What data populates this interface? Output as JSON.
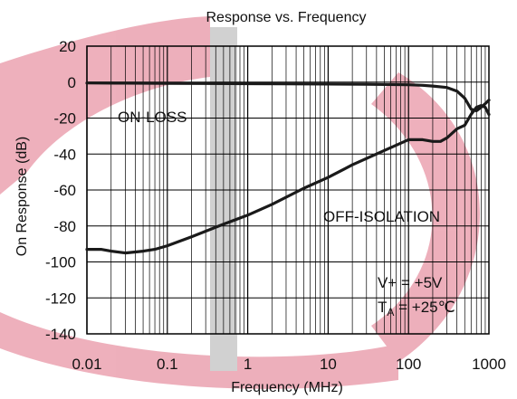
{
  "chart_data": {
    "type": "line",
    "title": "Response vs. Frequency",
    "xlabel": "Frequency (MHz)",
    "ylabel": "On Response (dB)",
    "xscale": "log",
    "xlim": [
      0.01,
      1000
    ],
    "ylim": [
      -140,
      20
    ],
    "grid": true,
    "xticks": [
      0.01,
      0.1,
      1,
      10,
      100,
      1000
    ],
    "xtick_labels": [
      "0.01",
      "0.1",
      "1",
      "10",
      "100",
      "1000"
    ],
    "yticks": [
      20,
      0,
      -20,
      -40,
      -60,
      -80,
      -100,
      -120,
      -140
    ],
    "ytick_labels": [
      "20",
      "0",
      "-20",
      "-40",
      "-60",
      "-80",
      "-100",
      "-120",
      "-140"
    ],
    "series": [
      {
        "name": "ON-LOSS",
        "color": "#1a1a1a",
        "x": [
          0.01,
          0.03,
          0.1,
          0.3,
          1,
          3,
          10,
          30,
          100,
          150,
          200,
          300,
          400,
          500,
          600,
          700,
          800,
          900,
          1000
        ],
        "y": [
          -0.5,
          -0.6,
          -0.7,
          -0.8,
          -0.9,
          -1.0,
          -1.1,
          -1.2,
          -1.5,
          -1.8,
          -2.2,
          -3,
          -5,
          -9,
          -15,
          -16,
          -14,
          -12,
          -10
        ]
      },
      {
        "name": "OFF-ISOLATION",
        "color": "#1a1a1a",
        "x": [
          0.01,
          0.015,
          0.02,
          0.03,
          0.05,
          0.07,
          0.1,
          0.2,
          0.5,
          1,
          2,
          5,
          10,
          20,
          50,
          100,
          150,
          200,
          250,
          300,
          400,
          500,
          600,
          700,
          800,
          900,
          1000
        ],
        "y": [
          -93,
          -93,
          -94,
          -95,
          -94,
          -93,
          -91,
          -86,
          -79,
          -74,
          -68,
          -59,
          -53,
          -46,
          -38,
          -32,
          -32,
          -33,
          -33,
          -31,
          -26,
          -24,
          -18,
          -14,
          -13,
          -14,
          -18
        ]
      }
    ],
    "annotations": {
      "on_loss": "ON-LOSS",
      "off_isolation": "OFF-ISOLATION",
      "supply": "V+ = +5V",
      "temp_prefix": "T",
      "temp_sub": "A",
      "temp_suffix": " = +25℃"
    },
    "watermark_colors": {
      "red": "#d9506b",
      "gray": "#9a9a9a"
    }
  }
}
